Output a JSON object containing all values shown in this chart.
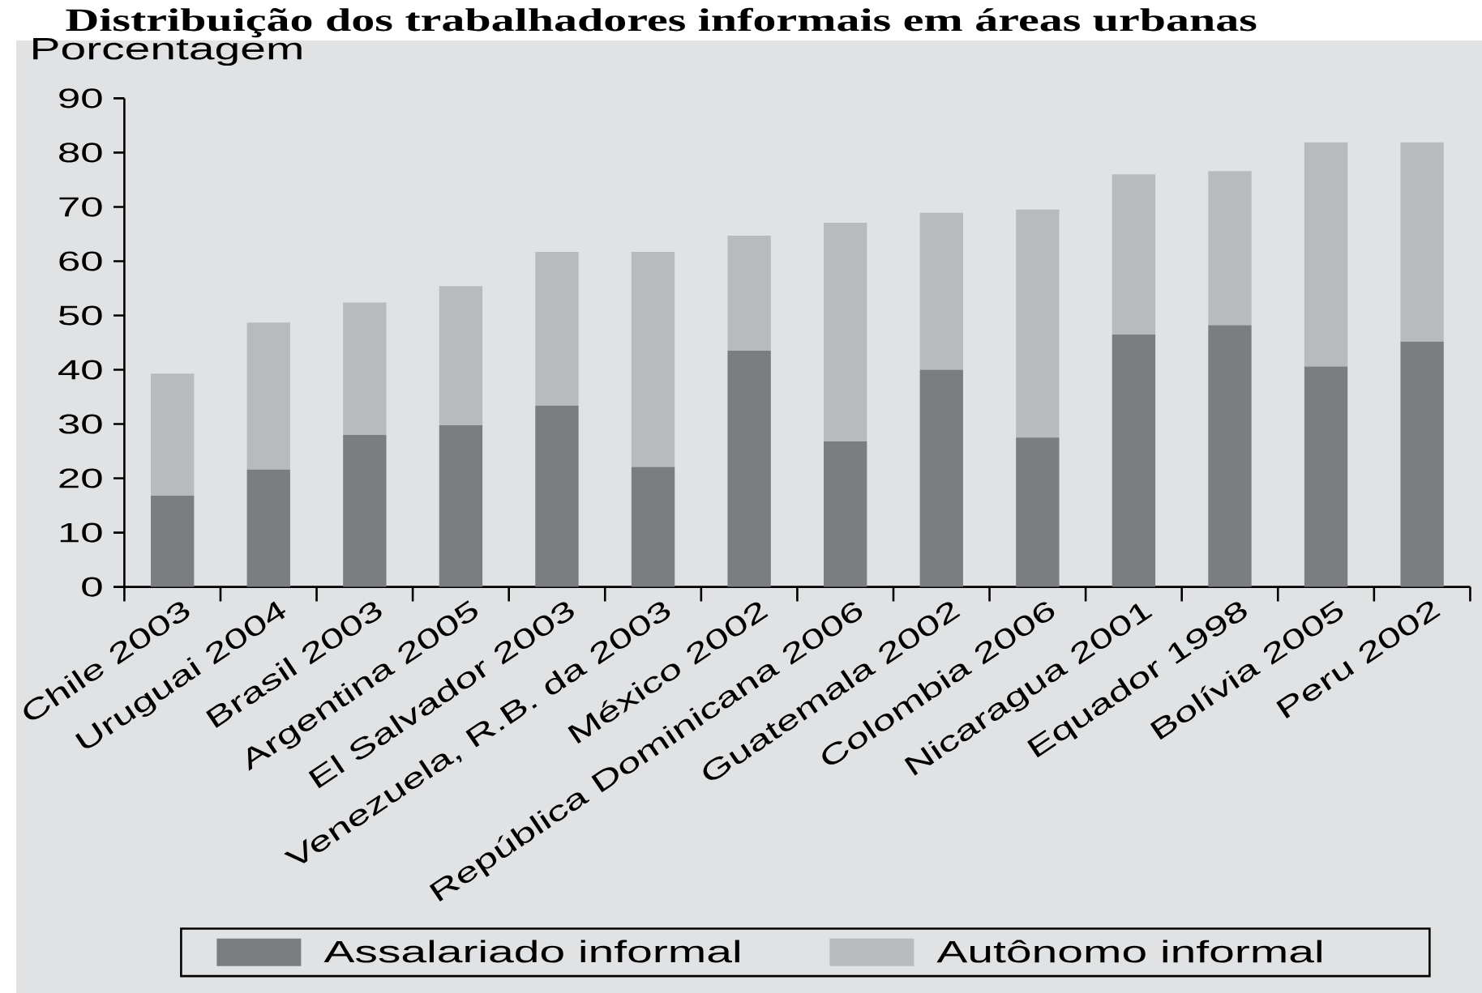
{
  "chart_data": {
    "type": "bar",
    "title": "Distribuição dos trabalhadores informais em áreas urbanas",
    "ylabel": "Porcentagem",
    "categories": [
      "Chile 2003",
      "Uruguai 2004",
      "Brasil 2003",
      "Argentina 2005",
      "El Salvador 2003",
      "Venezuela, R.B. da 2003",
      "México 2002",
      "República Dominicana 2006",
      "Guatemala 2002",
      "Colombia 2006",
      "Nicaragua 2001",
      "Equador 1998",
      "Bolívia 2005",
      "Peru 2002"
    ],
    "stacked": true,
    "series": [
      {
        "name": "Assalariado informal",
        "color": "#7b7d80",
        "values": [
          16.8,
          21.6,
          28.0,
          29.8,
          33.4,
          22.1,
          43.5,
          26.8,
          40.0,
          27.5,
          46.5,
          48.2,
          40.6,
          45.2
        ]
      },
      {
        "name": "Autônomo informal",
        "color": "#b9babd",
        "values": [
          22.5,
          27.1,
          24.4,
          25.6,
          28.3,
          39.6,
          21.2,
          40.3,
          28.9,
          42.0,
          29.5,
          28.4,
          41.3,
          36.7
        ]
      }
    ],
    "ylim": [
      0,
      90
    ],
    "yticks": [
      0,
      10,
      20,
      30,
      40,
      50,
      60,
      70,
      80,
      90
    ],
    "legend": "bottom"
  }
}
